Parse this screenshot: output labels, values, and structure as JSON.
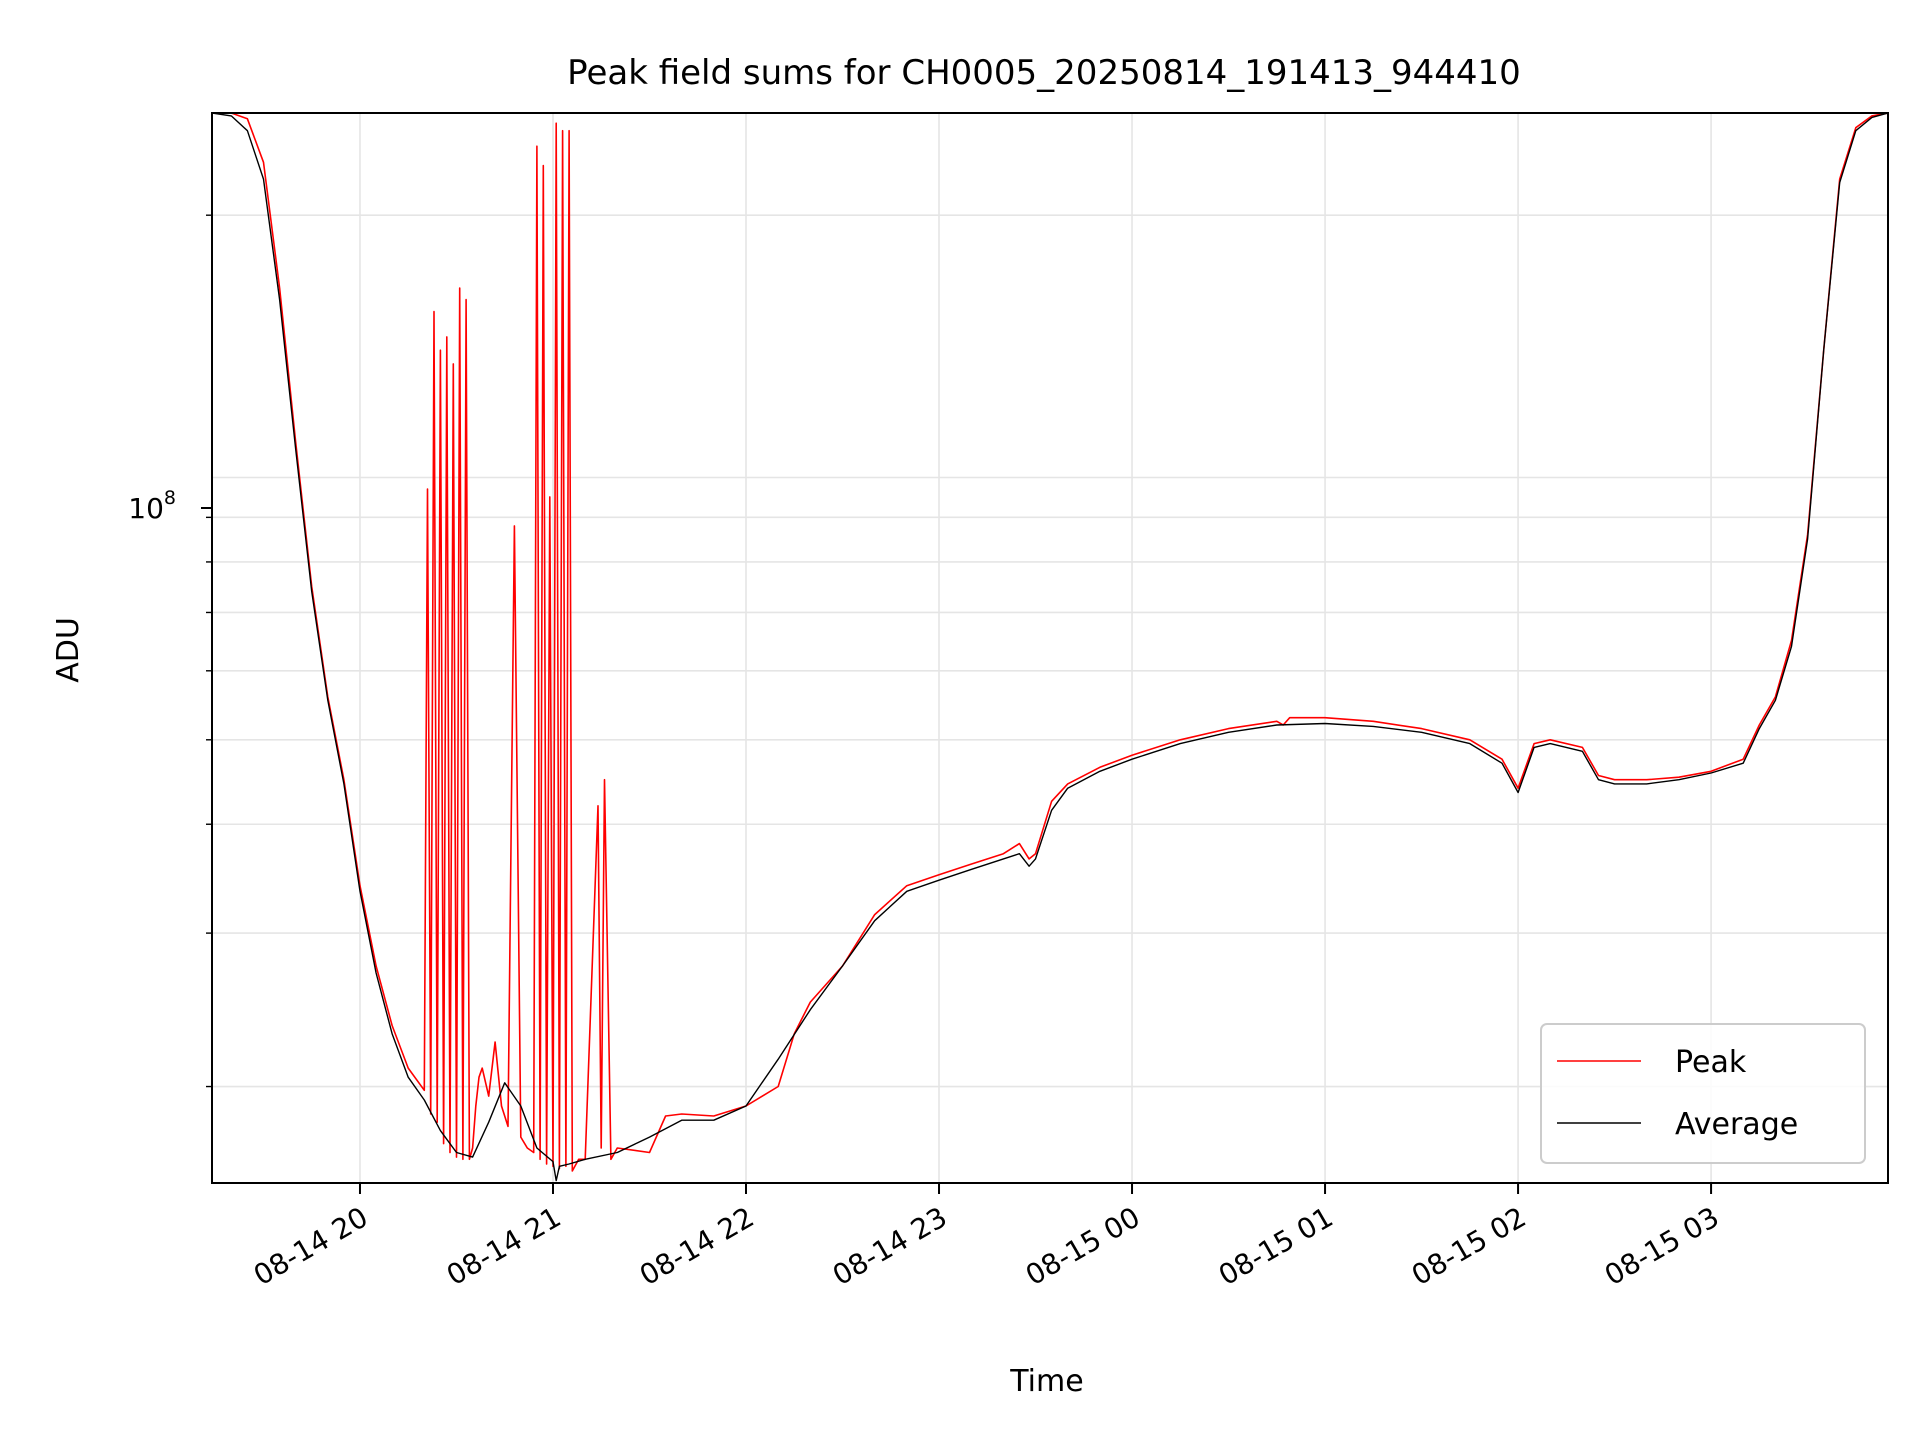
{
  "chart_data": {
    "type": "line",
    "title": "Peak field sums for CH0005_20250814_191413_944410",
    "xlabel": "Time",
    "ylabel": "ADU",
    "yscale": "log",
    "grid": true,
    "legend_position": "lower-right",
    "x_tick_labels": [
      "08-14 20",
      "08-14 21",
      "08-14 22",
      "08-14 23",
      "08-15 00",
      "08-15 01",
      "08-15 02",
      "08-15 03"
    ],
    "x_ticks": [
      "2025-08-14T20:00",
      "2025-08-14T21:00",
      "2025-08-14T22:00",
      "2025-08-14T23:00",
      "2025-08-15T00:00",
      "2025-08-15T01:00",
      "2025-08-15T02:00",
      "2025-08-15T03:00"
    ],
    "xlim": [
      "2025-08-14T19:14",
      "2025-08-15T03:55"
    ],
    "y_tick_label": {
      "base": "10",
      "exponent": "8"
    },
    "ylim": [
      15500000,
      262000000
    ],
    "series": [
      {
        "name": "Peak",
        "color": "#ff0000",
        "x": [
          "2025-08-14T19:14",
          "2025-08-14T19:20",
          "2025-08-14T19:25",
          "2025-08-14T19:30",
          "2025-08-14T19:35",
          "2025-08-14T19:40",
          "2025-08-14T19:45",
          "2025-08-14T19:50",
          "2025-08-14T19:55",
          "2025-08-14T20:00",
          "2025-08-14T20:05",
          "2025-08-14T20:10",
          "2025-08-14T20:15",
          "2025-08-14T20:20",
          "2025-08-14T20:21",
          "2025-08-14T20:22",
          "2025-08-14T20:23",
          "2025-08-14T20:24",
          "2025-08-14T20:25",
          "2025-08-14T20:26",
          "2025-08-14T20:27",
          "2025-08-14T20:28",
          "2025-08-14T20:29",
          "2025-08-14T20:30",
          "2025-08-14T20:31",
          "2025-08-14T20:32",
          "2025-08-14T20:33",
          "2025-08-14T20:34",
          "2025-08-14T20:35",
          "2025-08-14T20:36",
          "2025-08-14T20:37",
          "2025-08-14T20:38",
          "2025-08-14T20:40",
          "2025-08-14T20:42",
          "2025-08-14T20:44",
          "2025-08-14T20:46",
          "2025-08-14T20:48",
          "2025-08-14T20:50",
          "2025-08-14T20:52",
          "2025-08-14T20:54",
          "2025-08-14T20:55",
          "2025-08-14T20:56",
          "2025-08-14T20:57",
          "2025-08-14T20:58",
          "2025-08-14T20:59",
          "2025-08-14T21:00",
          "2025-08-14T21:01",
          "2025-08-14T21:02",
          "2025-08-14T21:03",
          "2025-08-14T21:04",
          "2025-08-14T21:05",
          "2025-08-14T21:06",
          "2025-08-14T21:08",
          "2025-08-14T21:10",
          "2025-08-14T21:14",
          "2025-08-14T21:15",
          "2025-08-14T21:16",
          "2025-08-14T21:18",
          "2025-08-14T21:20",
          "2025-08-14T21:30",
          "2025-08-14T21:35",
          "2025-08-14T21:40",
          "2025-08-14T21:50",
          "2025-08-14T22:00",
          "2025-08-14T22:10",
          "2025-08-14T22:15",
          "2025-08-14T22:20",
          "2025-08-14T22:30",
          "2025-08-14T22:40",
          "2025-08-14T22:50",
          "2025-08-14T23:00",
          "2025-08-14T23:10",
          "2025-08-14T23:20",
          "2025-08-14T23:25",
          "2025-08-14T23:28",
          "2025-08-14T23:30",
          "2025-08-14T23:35",
          "2025-08-14T23:40",
          "2025-08-14T23:50",
          "2025-08-15T00:00",
          "2025-08-15T00:15",
          "2025-08-15T00:30",
          "2025-08-15T00:45",
          "2025-08-15T00:47",
          "2025-08-15T00:49",
          "2025-08-15T01:00",
          "2025-08-15T01:15",
          "2025-08-15T01:30",
          "2025-08-15T01:45",
          "2025-08-15T01:55",
          "2025-08-15T02:00",
          "2025-08-15T02:05",
          "2025-08-15T02:10",
          "2025-08-15T02:20",
          "2025-08-15T02:25",
          "2025-08-15T02:30",
          "2025-08-15T02:40",
          "2025-08-15T02:50",
          "2025-08-15T03:00",
          "2025-08-15T03:10",
          "2025-08-15T03:15",
          "2025-08-15T03:20",
          "2025-08-15T03:25",
          "2025-08-15T03:30",
          "2025-08-15T03:35",
          "2025-08-15T03:40",
          "2025-08-15T03:45",
          "2025-08-15T03:50",
          "2025-08-15T03:55"
        ],
        "y": [
          262000000,
          262000000,
          258000000,
          230000000,
          165000000,
          110000000,
          75000000,
          56000000,
          45000000,
          34000000,
          27500000,
          23500000,
          21000000,
          19800000,
          97000000,
          18600000,
          155000000,
          18200000,
          140000000,
          17200000,
          145000000,
          16800000,
          135000000,
          16600000,
          165000000,
          16500000,
          160000000,
          16500000,
          17000000,
          19000000,
          20500000,
          21000000,
          19500000,
          22500000,
          19000000,
          18000000,
          88000000,
          17500000,
          17000000,
          16800000,
          240000000,
          16500000,
          228000000,
          16300000,
          95000000,
          16200000,
          255000000,
          16100000,
          250000000,
          16200000,
          250000000,
          16000000,
          16500000,
          16500000,
          42000000,
          17000000,
          45000000,
          16500000,
          17000000,
          16800000,
          18500000,
          18600000,
          18500000,
          19000000,
          20000000,
          23000000,
          25000000,
          27500000,
          31500000,
          34000000,
          35000000,
          36000000,
          37000000,
          38000000,
          36500000,
          37000000,
          42500000,
          44500000,
          46500000,
          48000000,
          50000000,
          51500000,
          52500000,
          52000000,
          53000000,
          53000000,
          52500000,
          51500000,
          50000000,
          47500000,
          44000000,
          49500000,
          50000000,
          49000000,
          45500000,
          45000000,
          45000000,
          45300000,
          46000000,
          47500000,
          52000000,
          56000000,
          65000000,
          86000000,
          140000000,
          220000000,
          252000000,
          260000000,
          262000000
        ]
      },
      {
        "name": "Average",
        "color": "#000000",
        "x": [
          "2025-08-14T19:14",
          "2025-08-14T19:20",
          "2025-08-14T19:25",
          "2025-08-14T19:30",
          "2025-08-14T19:35",
          "2025-08-14T19:40",
          "2025-08-14T19:45",
          "2025-08-14T19:50",
          "2025-08-14T19:55",
          "2025-08-14T20:00",
          "2025-08-14T20:05",
          "2025-08-14T20:10",
          "2025-08-14T20:15",
          "2025-08-14T20:20",
          "2025-08-14T20:25",
          "2025-08-14T20:30",
          "2025-08-14T20:35",
          "2025-08-14T20:40",
          "2025-08-14T20:45",
          "2025-08-14T20:50",
          "2025-08-14T20:55",
          "2025-08-14T21:00",
          "2025-08-14T21:01",
          "2025-08-14T21:02",
          "2025-08-14T21:05",
          "2025-08-14T21:10",
          "2025-08-14T21:20",
          "2025-08-14T21:30",
          "2025-08-14T21:40",
          "2025-08-14T21:50",
          "2025-08-14T22:00",
          "2025-08-14T22:10",
          "2025-08-14T22:20",
          "2025-08-14T22:30",
          "2025-08-14T22:40",
          "2025-08-14T22:50",
          "2025-08-14T23:00",
          "2025-08-14T23:10",
          "2025-08-14T23:20",
          "2025-08-14T23:25",
          "2025-08-14T23:28",
          "2025-08-14T23:30",
          "2025-08-14T23:35",
          "2025-08-14T23:40",
          "2025-08-14T23:50",
          "2025-08-15T00:00",
          "2025-08-15T00:15",
          "2025-08-15T00:30",
          "2025-08-15T00:45",
          "2025-08-15T01:00",
          "2025-08-15T01:15",
          "2025-08-15T01:30",
          "2025-08-15T01:45",
          "2025-08-15T01:55",
          "2025-08-15T02:00",
          "2025-08-15T02:05",
          "2025-08-15T02:10",
          "2025-08-15T02:20",
          "2025-08-15T02:25",
          "2025-08-15T02:30",
          "2025-08-15T02:40",
          "2025-08-15T02:50",
          "2025-08-15T03:00",
          "2025-08-15T03:10",
          "2025-08-15T03:15",
          "2025-08-15T03:20",
          "2025-08-15T03:25",
          "2025-08-15T03:30",
          "2025-08-15T03:35",
          "2025-08-15T03:40",
          "2025-08-15T03:45",
          "2025-08-15T03:50",
          "2025-08-15T03:55"
        ],
        "y": [
          262000000,
          260000000,
          250000000,
          220000000,
          160000000,
          108000000,
          74000000,
          55500000,
          44500000,
          33500000,
          27000000,
          23000000,
          20500000,
          19300000,
          17800000,
          16800000,
          16600000,
          18200000,
          20200000,
          19000000,
          17000000,
          16400000,
          15600000,
          16200000,
          16300000,
          16500000,
          16800000,
          17500000,
          18300000,
          18300000,
          19000000,
          21500000,
          24500000,
          27500000,
          31000000,
          33500000,
          34500000,
          35500000,
          36500000,
          37000000,
          35800000,
          36500000,
          41500000,
          44000000,
          46000000,
          47500000,
          49500000,
          51000000,
          52000000,
          52200000,
          51800000,
          51000000,
          49500000,
          47000000,
          43500000,
          49000000,
          49500000,
          48500000,
          45000000,
          44500000,
          44500000,
          45000000,
          45800000,
          47000000,
          51500000,
          55500000,
          64000000,
          85000000,
          140000000,
          218000000,
          250000000,
          259000000,
          262000000
        ]
      }
    ]
  }
}
